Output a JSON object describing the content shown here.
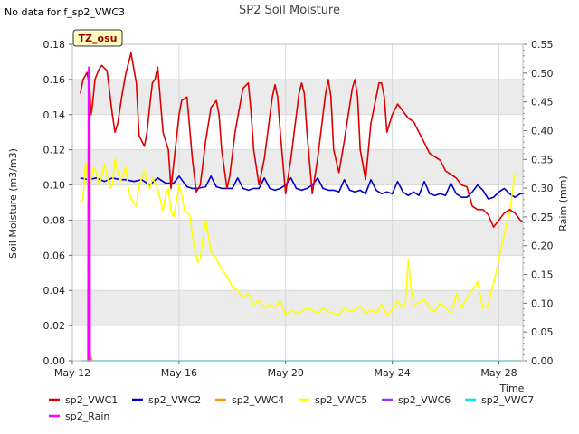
{
  "note": "No data for f_sp2_VWC3",
  "badge": "TZ_osu",
  "colors": {
    "sp2_VWC1": "#dd0000",
    "sp2_VWC2": "#0000cc",
    "sp2_VWC4": "#ff9900",
    "sp2_VWC5": "#ffff00",
    "sp2_VWC6": "#9933ff",
    "sp2_VWC7": "#00e5e5",
    "sp2_Rain": "#ff00ff",
    "band": "#ebebeb",
    "grid": "#d9d9d9",
    "badge_bg": "#ffffc0",
    "badge_text": "#990000"
  },
  "chart_data": {
    "type": "line",
    "title": "SP2 Soil Moisture",
    "xlabel": "Time",
    "ylabel": "Soil Moisture (m3/m3)",
    "y2label": "Raim (mm)",
    "x_ticks": [
      "May 12",
      "May 16",
      "May 20",
      "May 24",
      "May 28"
    ],
    "x_tick_days": [
      12,
      16,
      20,
      24,
      28
    ],
    "xlim": [
      12,
      28.9
    ],
    "ylim": [
      0,
      0.18
    ],
    "y_ticks": [
      "0.00",
      "0.02",
      "0.04",
      "0.06",
      "0.08",
      "0.10",
      "0.12",
      "0.14",
      "0.16",
      "0.18"
    ],
    "y2lim": [
      0,
      0.55
    ],
    "y2_ticks": [
      "0.00",
      "0.05",
      "0.10",
      "0.15",
      "0.20",
      "0.25",
      "0.30",
      "0.35",
      "0.40",
      "0.45",
      "0.50",
      "0.55"
    ],
    "legend": [
      "sp2_VWC1",
      "sp2_VWC2",
      "sp2_VWC4",
      "sp2_VWC5",
      "sp2_VWC6",
      "sp2_VWC7",
      "sp2_Rain"
    ],
    "series": [
      {
        "name": "sp2_VWC1",
        "x": [
          12.3,
          12.4,
          12.55,
          12.65,
          12.7,
          12.75,
          12.85,
          13.0,
          13.1,
          13.3,
          13.5,
          13.6,
          13.7,
          13.75,
          13.85,
          14.0,
          14.2,
          14.4,
          14.5,
          14.7,
          14.8,
          14.9,
          15.0,
          15.1,
          15.2,
          15.4,
          15.5,
          15.6,
          15.7,
          15.8,
          16.0,
          16.1,
          16.3,
          16.5,
          16.65,
          16.8,
          17.0,
          17.2,
          17.4,
          17.5,
          17.6,
          17.8,
          17.9,
          18.1,
          18.4,
          18.6,
          18.7,
          18.8,
          19.0,
          19.2,
          19.5,
          19.6,
          19.7,
          19.8,
          20.0,
          20.2,
          20.5,
          20.6,
          20.7,
          20.8,
          21.0,
          21.2,
          21.5,
          21.6,
          21.7,
          21.8,
          22.0,
          22.2,
          22.5,
          22.6,
          22.7,
          22.8,
          23.0,
          23.2,
          23.5,
          23.6,
          23.7,
          23.8,
          24.0,
          24.2,
          24.4,
          24.6,
          24.8,
          25.0,
          25.2,
          25.4,
          25.6,
          25.8,
          26.0,
          26.2,
          26.4,
          26.6,
          26.8,
          27.0,
          27.2,
          27.4,
          27.6,
          27.8,
          28.0,
          28.2,
          28.4,
          28.6,
          28.8,
          28.9
        ],
        "y": [
          0.152,
          0.16,
          0.164,
          0.155,
          0.14,
          0.145,
          0.16,
          0.166,
          0.168,
          0.165,
          0.14,
          0.13,
          0.135,
          0.14,
          0.15,
          0.163,
          0.175,
          0.158,
          0.128,
          0.122,
          0.13,
          0.145,
          0.158,
          0.16,
          0.167,
          0.13,
          0.125,
          0.12,
          0.098,
          0.112,
          0.14,
          0.148,
          0.15,
          0.115,
          0.096,
          0.1,
          0.125,
          0.144,
          0.148,
          0.14,
          0.12,
          0.098,
          0.105,
          0.13,
          0.155,
          0.158,
          0.142,
          0.12,
          0.1,
          0.115,
          0.15,
          0.157,
          0.15,
          0.13,
          0.095,
          0.115,
          0.152,
          0.158,
          0.152,
          0.13,
          0.095,
          0.115,
          0.152,
          0.16,
          0.15,
          0.12,
          0.107,
          0.125,
          0.155,
          0.16,
          0.15,
          0.12,
          0.103,
          0.135,
          0.158,
          0.158,
          0.15,
          0.13,
          0.14,
          0.146,
          0.142,
          0.138,
          0.136,
          0.13,
          0.124,
          0.118,
          0.116,
          0.114,
          0.108,
          0.106,
          0.104,
          0.1,
          0.099,
          0.088,
          0.086,
          0.086,
          0.083,
          0.076,
          0.08,
          0.084,
          0.086,
          0.084,
          0.08,
          0.079
        ]
      },
      {
        "name": "sp2_VWC2",
        "x": [
          12.3,
          12.6,
          12.9,
          13.2,
          13.5,
          13.8,
          14.0,
          14.3,
          14.6,
          14.9,
          15.2,
          15.5,
          15.8,
          16.0,
          16.3,
          16.5,
          16.7,
          17.0,
          17.2,
          17.4,
          17.6,
          17.8,
          18.0,
          18.2,
          18.4,
          18.6,
          18.8,
          19.0,
          19.2,
          19.4,
          19.6,
          19.8,
          20.0,
          20.2,
          20.4,
          20.6,
          20.8,
          21.0,
          21.2,
          21.4,
          21.6,
          21.8,
          22.0,
          22.2,
          22.4,
          22.6,
          22.8,
          23.0,
          23.2,
          23.4,
          23.6,
          23.8,
          24.0,
          24.2,
          24.4,
          24.6,
          24.8,
          25.0,
          25.2,
          25.4,
          25.6,
          25.8,
          26.0,
          26.2,
          26.4,
          26.6,
          26.8,
          27.0,
          27.2,
          27.4,
          27.6,
          27.8,
          28.0,
          28.2,
          28.4,
          28.6,
          28.8,
          28.9
        ],
        "y": [
          0.104,
          0.103,
          0.104,
          0.102,
          0.104,
          0.103,
          0.103,
          0.102,
          0.103,
          0.1,
          0.104,
          0.101,
          0.101,
          0.105,
          0.099,
          0.098,
          0.098,
          0.099,
          0.105,
          0.099,
          0.098,
          0.098,
          0.098,
          0.104,
          0.098,
          0.097,
          0.098,
          0.098,
          0.104,
          0.098,
          0.097,
          0.098,
          0.1,
          0.104,
          0.098,
          0.097,
          0.098,
          0.1,
          0.104,
          0.098,
          0.097,
          0.097,
          0.096,
          0.103,
          0.097,
          0.096,
          0.097,
          0.095,
          0.103,
          0.097,
          0.095,
          0.096,
          0.095,
          0.102,
          0.096,
          0.094,
          0.096,
          0.094,
          0.102,
          0.095,
          0.094,
          0.095,
          0.094,
          0.101,
          0.095,
          0.093,
          0.093,
          0.096,
          0.1,
          0.097,
          0.092,
          0.093,
          0.096,
          0.098,
          0.095,
          0.093,
          0.095,
          0.095
        ]
      },
      {
        "name": "sp2_VWC5",
        "x": [
          12.3,
          12.4,
          12.5,
          12.6,
          12.7,
          12.8,
          12.9,
          13.0,
          13.1,
          13.2,
          13.4,
          13.5,
          13.6,
          13.7,
          13.8,
          14.0,
          14.1,
          14.2,
          14.4,
          14.5,
          14.7,
          14.8,
          14.9,
          15.0,
          15.2,
          15.4,
          15.5,
          15.6,
          15.7,
          15.8,
          15.9,
          16.0,
          16.1,
          16.2,
          16.4,
          16.5,
          16.6,
          16.7,
          16.8,
          16.9,
          17.0,
          17.2,
          17.4,
          17.6,
          17.8,
          18.0,
          18.2,
          18.4,
          18.6,
          18.8,
          19.0,
          19.2,
          19.4,
          19.6,
          19.8,
          20.0,
          20.2,
          20.4,
          20.6,
          20.8,
          21.0,
          21.2,
          21.4,
          21.6,
          21.8,
          22.0,
          22.2,
          22.4,
          22.6,
          22.8,
          23.0,
          23.2,
          23.4,
          23.6,
          23.8,
          24.0,
          24.2,
          24.4,
          24.5,
          24.6,
          24.7,
          24.8,
          25.0,
          25.2,
          25.4,
          25.6,
          25.8,
          26.0,
          26.2,
          26.4,
          26.6,
          26.8,
          27.0,
          27.2,
          27.4,
          27.6,
          27.8,
          28.0,
          28.2,
          28.4,
          28.5,
          28.6
        ],
        "y": [
          0.09,
          0.092,
          0.113,
          0.098,
          0.103,
          0.11,
          0.107,
          0.1,
          0.105,
          0.112,
          0.098,
          0.1,
          0.115,
          0.108,
          0.102,
          0.11,
          0.098,
          0.092,
          0.088,
          0.1,
          0.108,
          0.102,
          0.098,
          0.104,
          0.098,
          0.085,
          0.094,
          0.098,
          0.085,
          0.082,
          0.09,
          0.1,
          0.095,
          0.085,
          0.083,
          0.072,
          0.063,
          0.056,
          0.058,
          0.07,
          0.08,
          0.062,
          0.058,
          0.052,
          0.048,
          0.042,
          0.04,
          0.036,
          0.038,
          0.032,
          0.034,
          0.03,
          0.032,
          0.03,
          0.034,
          0.026,
          0.029,
          0.027,
          0.028,
          0.03,
          0.029,
          0.027,
          0.03,
          0.028,
          0.027,
          0.026,
          0.03,
          0.028,
          0.029,
          0.031,
          0.027,
          0.029,
          0.027,
          0.032,
          0.026,
          0.029,
          0.034,
          0.03,
          0.033,
          0.058,
          0.042,
          0.032,
          0.033,
          0.035,
          0.03,
          0.028,
          0.033,
          0.03,
          0.027,
          0.038,
          0.03,
          0.036,
          0.04,
          0.045,
          0.03,
          0.032,
          0.044,
          0.058,
          0.072,
          0.084,
          0.095,
          0.107
        ]
      },
      {
        "name": "sp2_VWC7",
        "x": [
          12.3,
          28.9
        ],
        "y": [
          0.0,
          0.0
        ]
      },
      {
        "name": "sp2_VWC4",
        "x": [
          12.6,
          12.65,
          12.7,
          12.75
        ],
        "y": [
          0.0,
          0.002,
          0.002,
          0.0
        ]
      },
      {
        "name": "sp2_VWC6",
        "x": [
          12.58,
          12.6,
          12.62
        ],
        "y": [
          0.0,
          0.165,
          0.0
        ]
      },
      {
        "name": "sp2_Rain",
        "axis": "right",
        "x": [
          12.6,
          12.62,
          12.63,
          12.64,
          12.66
        ],
        "y": [
          0.0,
          0.51,
          0.0,
          0.51,
          0.0
        ]
      }
    ]
  }
}
